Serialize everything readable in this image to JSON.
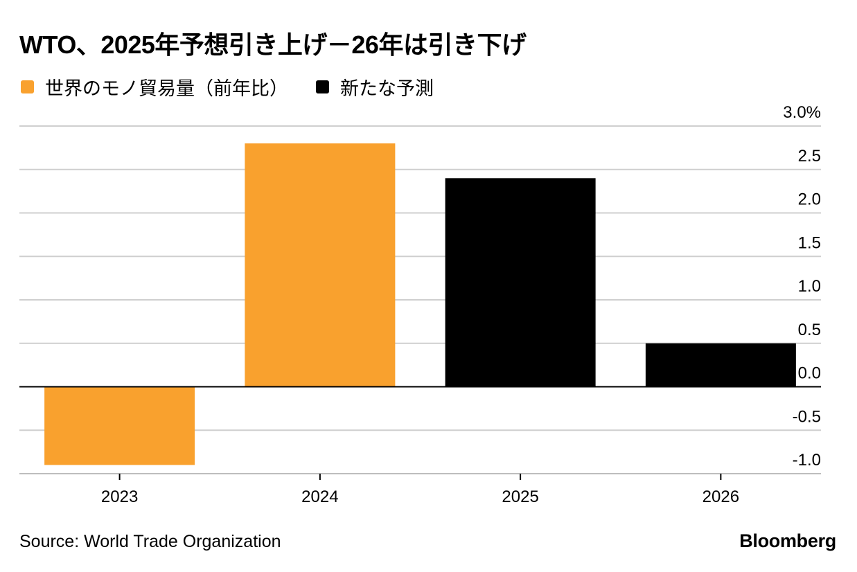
{
  "title": "WTO、2025年予想引き上げ－26年は引き下げ",
  "legend": [
    {
      "label": "世界のモノ貿易量（前年比）",
      "color": "#F9A12E"
    },
    {
      "label": "新たな予測",
      "color": "#000000"
    }
  ],
  "chart_data": {
    "type": "bar",
    "categories": [
      "2023",
      "2024",
      "2025",
      "2026"
    ],
    "values": [
      -0.9,
      2.8,
      2.4,
      0.5
    ],
    "bar_series": [
      "世界のモノ貿易量（前年比）",
      "世界のモノ貿易量（前年比）",
      "新たな予測",
      "新たな予測"
    ],
    "ylim": [
      -1.0,
      3.0
    ],
    "yticks": [
      -1.0,
      -0.5,
      0.0,
      0.5,
      1.0,
      1.5,
      2.0,
      2.5,
      3.0
    ],
    "ytick_labels": [
      "-1.0",
      "-0.5",
      "0.0",
      "0.5",
      "1.0",
      "1.5",
      "2.0",
      "2.5",
      "3.0%"
    ],
    "y_axis_position": "right",
    "grid": true,
    "xlabel": "",
    "ylabel": ""
  },
  "footer": {
    "source": "Source: World Trade Organization",
    "brand": "Bloomberg"
  }
}
